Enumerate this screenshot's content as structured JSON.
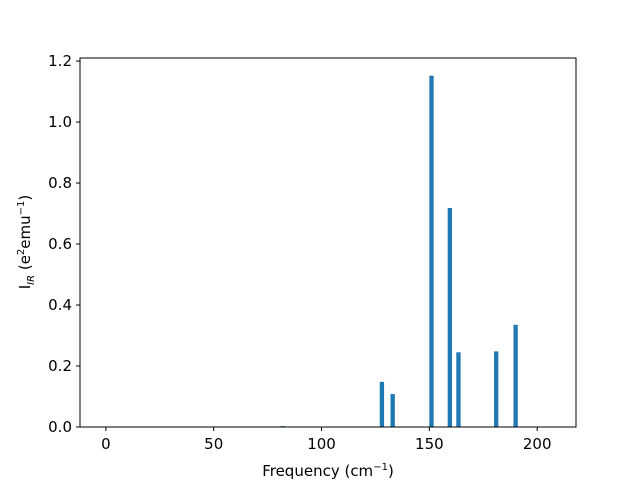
{
  "chart_data": {
    "type": "bar",
    "xlabel": {
      "base": "Frequency (cm",
      "sup": "−1",
      "close": ")"
    },
    "ylabel": {
      "main": "I",
      "sub": "IR",
      "open": " (e",
      "sup1": "2",
      "mid": "emu",
      "sup2": "−1",
      "close": ")"
    },
    "xlim": [
      -12,
      218
    ],
    "ylim": [
      0,
      1.21
    ],
    "xticks": [
      0,
      50,
      100,
      150,
      200
    ],
    "xtick_labels": [
      "0",
      "50",
      "100",
      "150",
      "200"
    ],
    "yticks": [
      0.0,
      0.2,
      0.4,
      0.6,
      0.8,
      1.0,
      1.2
    ],
    "ytick_labels": [
      "0.0",
      "0.2",
      "0.4",
      "0.6",
      "0.8",
      "1.0",
      "1.2"
    ],
    "bar_width": 2,
    "color": "#1f77b4",
    "grid": false,
    "x": [
      82,
      128,
      133,
      151,
      159.5,
      163.5,
      181,
      190
    ],
    "values": [
      0.003,
      0.148,
      0.108,
      1.152,
      0.718,
      0.245,
      0.248,
      0.335
    ]
  }
}
